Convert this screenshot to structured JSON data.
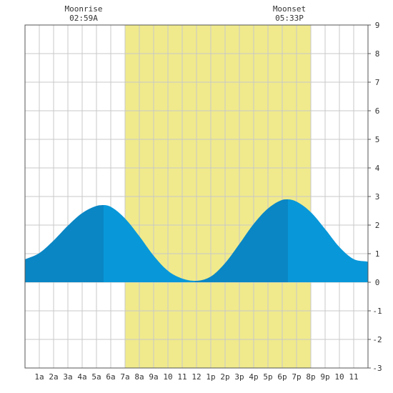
{
  "chart_data": {
    "type": "area",
    "x_unit": "hour of day",
    "xlim": [
      0,
      24
    ],
    "ylim": [
      -3,
      9
    ],
    "y_ticks": [
      -3,
      -2,
      -1,
      0,
      1,
      2,
      3,
      4,
      5,
      6,
      7,
      8,
      9
    ],
    "x_tick_labels": [
      "1a",
      "2a",
      "3a",
      "4a",
      "5a",
      "6a",
      "7a",
      "8a",
      "9a",
      "10",
      "11",
      "12",
      "1p",
      "2p",
      "3p",
      "4p",
      "5p",
      "6p",
      "7p",
      "8p",
      "9p",
      "10",
      "11"
    ],
    "daylight": {
      "start": 7,
      "end": 20
    },
    "tide_extremes": [
      {
        "type": "high",
        "x": 5.5,
        "y": 2.7
      },
      {
        "type": "low",
        "x": 11.9,
        "y": 0.05
      },
      {
        "type": "high",
        "x": 18.4,
        "y": 2.9
      }
    ],
    "series": [
      {
        "x": [
          0,
          1,
          2,
          3,
          4,
          5,
          5.5,
          6,
          7,
          8,
          9,
          10,
          11,
          11.9,
          13,
          14,
          15,
          16,
          17,
          18,
          18.4,
          19,
          20,
          21,
          22,
          23,
          24
        ],
        "values": [
          0.8,
          1.02,
          1.46,
          1.98,
          2.42,
          2.67,
          2.7,
          2.64,
          2.23,
          1.61,
          0.93,
          0.4,
          0.13,
          0.05,
          0.2,
          0.67,
          1.34,
          2.04,
          2.58,
          2.88,
          2.9,
          2.82,
          2.45,
          1.86,
          1.23,
          0.81,
          0.72
        ]
      }
    ],
    "moon": {
      "rise_label": "Moonrise",
      "rise_time": "02:59A",
      "set_label": "Moonset",
      "set_time": "05:33P"
    },
    "colors": {
      "daylight": "#f0ea8c",
      "rising": "#0a86c4",
      "falling": "#0898d9",
      "grid": "#c8c8c8",
      "frame": "#555555"
    }
  }
}
